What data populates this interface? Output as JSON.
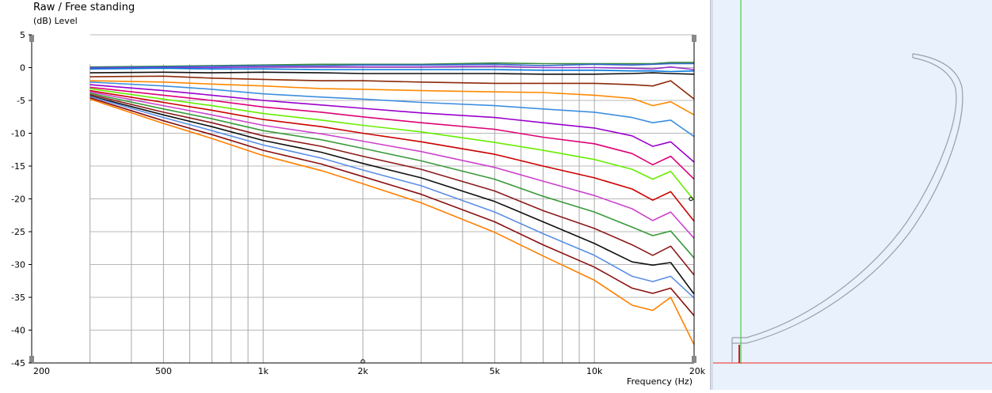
{
  "chart_data": {
    "type": "line",
    "title": "Raw / Free standing",
    "ylabel": "(dB)  Level",
    "xlabel": "Frequency  (Hz)",
    "xscale": "log",
    "xlim": [
      200,
      20000
    ],
    "ylim": [
      -45,
      5
    ],
    "yticks": [
      5,
      0,
      -5,
      -10,
      -15,
      -20,
      -25,
      -30,
      -35,
      -40,
      -45
    ],
    "xticks": [
      {
        "value": 200,
        "label": "200"
      },
      {
        "value": 500,
        "label": "500"
      },
      {
        "value": 1000,
        "label": "1k"
      },
      {
        "value": 2000,
        "label": "2k"
      },
      {
        "value": 5000,
        "label": "5k"
      },
      {
        "value": 10000,
        "label": "10k"
      },
      {
        "value": 20000,
        "label": "20k"
      }
    ],
    "grid": true,
    "legend": "none",
    "x": [
      300,
      500,
      700,
      1000,
      1500,
      2000,
      3000,
      5000,
      7000,
      10000,
      13000,
      15000,
      17000,
      20000
    ],
    "series": [
      {
        "color": "#3a8a3a",
        "values": [
          0.1,
          0.2,
          0.3,
          0.4,
          0.5,
          0.5,
          0.5,
          0.7,
          0.6,
          0.6,
          0.6,
          0.6,
          0.8,
          0.8
        ]
      },
      {
        "color": "#3366cc",
        "values": [
          0.0,
          0.1,
          0.2,
          0.3,
          0.3,
          0.4,
          0.4,
          0.5,
          0.3,
          0.5,
          0.4,
          0.5,
          0.6,
          0.6
        ]
      },
      {
        "color": "#9933cc",
        "values": [
          -0.1,
          0.0,
          0.0,
          0.1,
          0.1,
          0.1,
          0.1,
          0.2,
          0.0,
          0.0,
          -0.1,
          -0.2,
          0.1,
          -0.3
        ]
      },
      {
        "color": "#0077dd",
        "values": [
          -0.2,
          -0.1,
          -0.2,
          -0.2,
          -0.3,
          -0.3,
          -0.3,
          -0.3,
          -0.4,
          -0.4,
          -0.5,
          -0.5,
          -0.6,
          -0.5
        ]
      },
      {
        "color": "#111111",
        "values": [
          -0.8,
          -0.7,
          -0.8,
          -0.7,
          -0.8,
          -0.9,
          -0.9,
          -0.9,
          -1.0,
          -1.0,
          -0.9,
          -0.8,
          -0.9,
          -1.0
        ]
      },
      {
        "color": "#8b2a0a",
        "values": [
          -1.4,
          -1.3,
          -1.6,
          -1.8,
          -2.0,
          -2.0,
          -2.2,
          -2.4,
          -2.4,
          -2.4,
          -2.6,
          -2.8,
          -2.0,
          -4.8
        ]
      },
      {
        "color": "#ff8800",
        "values": [
          -2.0,
          -2.2,
          -2.5,
          -2.8,
          -3.2,
          -3.3,
          -3.5,
          -3.7,
          -3.8,
          -4.2,
          -4.7,
          -5.8,
          -5.2,
          -7.2
        ]
      },
      {
        "color": "#3d8ee0",
        "values": [
          -2.2,
          -2.8,
          -3.3,
          -4.0,
          -4.5,
          -4.8,
          -5.3,
          -5.8,
          -6.3,
          -6.8,
          -7.6,
          -8.4,
          -8.0,
          -10.5
        ]
      },
      {
        "color": "#9900cc",
        "values": [
          -2.6,
          -3.5,
          -4.2,
          -5.0,
          -5.7,
          -6.2,
          -6.9,
          -7.6,
          -8.4,
          -9.2,
          -10.4,
          -12.0,
          -11.3,
          -14.4
        ]
      },
      {
        "color": "#dd0077",
        "values": [
          -3.0,
          -4.2,
          -5.0,
          -6.0,
          -6.8,
          -7.5,
          -8.4,
          -9.4,
          -10.6,
          -11.6,
          -13.1,
          -14.8,
          -13.5,
          -17.0
        ]
      },
      {
        "color": "#66ee00",
        "values": [
          -3.2,
          -4.8,
          -5.8,
          -7.0,
          -8.0,
          -8.8,
          -9.8,
          -11.4,
          -12.6,
          -14.0,
          -15.5,
          -17.0,
          -15.8,
          -20.2
        ]
      },
      {
        "color": "#cc0000",
        "values": [
          -3.5,
          -5.3,
          -6.5,
          -7.9,
          -9.0,
          -10.0,
          -11.3,
          -13.2,
          -15.0,
          -16.8,
          -18.5,
          -20.2,
          -18.9,
          -23.4
        ]
      },
      {
        "color": "#cc44cc",
        "values": [
          -3.7,
          -5.8,
          -7.2,
          -8.8,
          -10.1,
          -11.2,
          -12.8,
          -15.2,
          -17.3,
          -19.5,
          -21.5,
          -23.3,
          -22.0,
          -26.0
        ]
      },
      {
        "color": "#3a9a3a",
        "values": [
          -3.9,
          -6.3,
          -7.8,
          -9.6,
          -11.0,
          -12.3,
          -14.2,
          -17.0,
          -19.6,
          -22.0,
          -24.3,
          -25.6,
          -24.9,
          -29.0
        ]
      },
      {
        "color": "#8b1a1a",
        "values": [
          -4.1,
          -6.8,
          -8.4,
          -10.4,
          -12.0,
          -13.5,
          -15.5,
          -18.8,
          -21.8,
          -24.5,
          -27.0,
          -28.6,
          -27.2,
          -31.6
        ]
      },
      {
        "color": "#111111",
        "values": [
          -4.3,
          -7.2,
          -9.0,
          -11.1,
          -12.9,
          -14.6,
          -16.8,
          -20.4,
          -23.5,
          -26.8,
          -29.6,
          -30.1,
          -29.7,
          -34.5
        ]
      },
      {
        "color": "#5b8ee6",
        "values": [
          -4.4,
          -7.6,
          -9.6,
          -11.8,
          -13.8,
          -15.6,
          -18.0,
          -22.0,
          -25.3,
          -28.6,
          -31.8,
          -32.6,
          -31.8,
          -35.1
        ]
      },
      {
        "color": "#8b1010",
        "values": [
          -4.6,
          -8.1,
          -10.2,
          -12.6,
          -14.7,
          -16.6,
          -19.3,
          -23.5,
          -27.0,
          -30.4,
          -33.6,
          -34.4,
          -33.6,
          -37.8
        ]
      },
      {
        "color": "#ff7f00",
        "values": [
          -4.8,
          -8.5,
          -10.8,
          -13.4,
          -15.7,
          -17.7,
          -20.6,
          -25.1,
          -28.7,
          -32.4,
          -36.2,
          -37.0,
          -35.0,
          -42.2
        ]
      }
    ]
  }
}
